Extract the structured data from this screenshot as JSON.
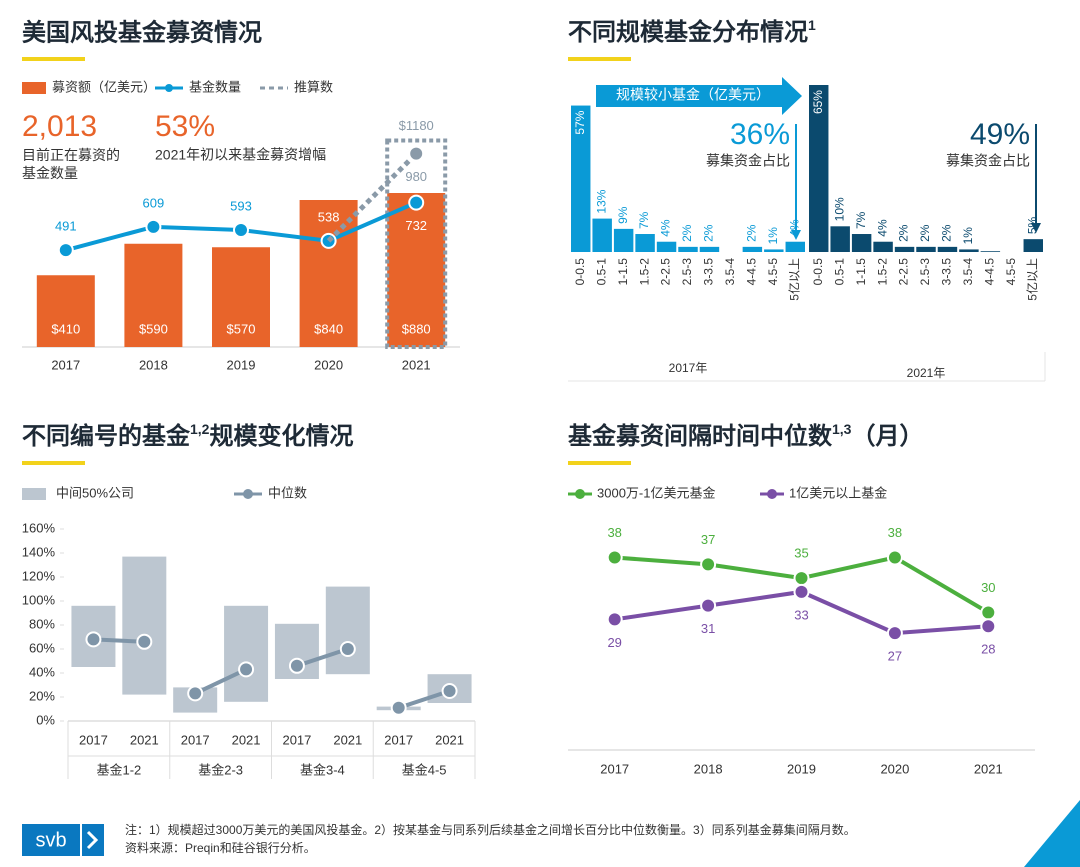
{
  "chart_data": [
    {
      "type": "combo",
      "title": "美国风投基金募资情况",
      "stats": [
        {
          "value": "2,013",
          "label": "目前正在募资的基金数量"
        },
        {
          "value": "53%",
          "label": "2021年初以来基金募资增幅"
        }
      ],
      "categories": [
        "2017",
        "2018",
        "2019",
        "2020",
        "2021"
      ],
      "series": [
        {
          "name": "募资额（亿美元）",
          "type": "bar",
          "color": "#e8642a",
          "values": [
            410,
            590,
            570,
            840,
            880
          ],
          "value_labels": [
            "$410",
            "$590",
            "$570",
            "$840",
            "$880"
          ]
        },
        {
          "name": "基金数量",
          "type": "line",
          "axis": "y2",
          "color": "#0a9ad6",
          "values": [
            491,
            609,
            593,
            538,
            732
          ]
        },
        {
          "name": "推算数",
          "type": "line",
          "axis": "y2",
          "style": "dashed",
          "color": "#8a9aa8",
          "values": [
            null,
            null,
            null,
            538,
            980
          ]
        }
      ],
      "projection_bar": {
        "color": "#8a9aa8",
        "values": [
          null,
          null,
          null,
          null,
          1180
        ],
        "value_labels": [
          null,
          null,
          null,
          null,
          "$1180"
        ]
      },
      "ylim": [
        0,
        1240
      ],
      "y2lim": [
        0,
        1100
      ]
    },
    {
      "type": "bar",
      "title": "不同规模基金分布情况",
      "title_superscript": "1",
      "categories": [
        "0-0.5",
        "0.5-1",
        "1-1.5",
        "1.5-2",
        "2-2.5",
        "2.5-3",
        "3-3.5",
        "3.5-4",
        "4-4.5",
        "4.5-5",
        "5亿以上"
      ],
      "series": [
        {
          "name": "2017年",
          "color": "#0a9ad6",
          "values": [
            57,
            13,
            9,
            7,
            4,
            2,
            2,
            0,
            2,
            1,
            4
          ],
          "value_labels": [
            "57%",
            "13%",
            "9%",
            "7%",
            "4%",
            "2%",
            "2%",
            null,
            "2%",
            "1%",
            "4%"
          ]
        },
        {
          "name": "2021年",
          "color": "#0b4a6e",
          "values": [
            65,
            10,
            7,
            4,
            2,
            2,
            2,
            1,
            0.3,
            0,
            5
          ],
          "value_labels": [
            "65%",
            "10%",
            "7%",
            "4%",
            "2%",
            "2%",
            "2%",
            "1%",
            null,
            null,
            "5%"
          ]
        }
      ],
      "annotations": {
        "arrow_text": "规模较小基金（亿美元）",
        "share_2017": "36%",
        "share_2017_text": "募集资金占比",
        "share_2021": "49%",
        "share_2021_text": "募集资金占比"
      },
      "ylim": [
        0,
        65
      ]
    },
    {
      "type": "range",
      "title": "不同编号的基金",
      "title_superscript": "1,2",
      "title_suffix": "规模变化情况",
      "groups": [
        "基金1-2",
        "基金2-3",
        "基金3-4",
        "基金4-5"
      ],
      "categories": [
        "2017",
        "2021",
        "2017",
        "2021",
        "2017",
        "2021",
        "2017",
        "2021"
      ],
      "series": [
        {
          "name": "中间50%公司",
          "type": "box",
          "color": "#bcc6d0",
          "low": [
            45,
            22,
            7,
            16,
            35,
            39,
            9,
            15
          ],
          "high": [
            96,
            137,
            28,
            96,
            81,
            112,
            12,
            39
          ]
        },
        {
          "name": "中位数",
          "type": "line",
          "color": "#7f95a8",
          "values": [
            68,
            66,
            23,
            43,
            46,
            60,
            11,
            25
          ]
        }
      ],
      "ylim": [
        0,
        160
      ],
      "yticks": [
        {
          "value": 0,
          "label": "0%"
        },
        {
          "value": 20,
          "label": "20%"
        },
        {
          "value": 40,
          "label": "40%"
        },
        {
          "value": 60,
          "label": "60%"
        },
        {
          "value": 80,
          "label": "80%"
        },
        {
          "value": 100,
          "label": "100%"
        },
        {
          "value": 120,
          "label": "120%"
        },
        {
          "value": 140,
          "label": "140%"
        },
        {
          "value": 160,
          "label": "160%"
        }
      ]
    },
    {
      "type": "line",
      "title": "基金募资间隔时间中位数",
      "title_superscript": "1,3",
      "title_suffix": "（月）",
      "categories": [
        "2017",
        "2018",
        "2019",
        "2020",
        "2021"
      ],
      "series": [
        {
          "name": "3000万-1亿美元基金",
          "color": "#4caf3e",
          "values": [
            38,
            37,
            35,
            38,
            30
          ]
        },
        {
          "name": "1亿美元以上基金",
          "color": "#7a4fa6",
          "values": [
            29,
            31,
            33,
            27,
            28
          ]
        }
      ],
      "ylim": [
        10,
        42
      ]
    }
  ],
  "footer": {
    "logo": "svb",
    "note": "注：1）规模超过3000万美元的美国风投基金。2）按某基金与同系列后续基金之间增长百分比中位数衡量。3）同系列基金募集间隔月数。",
    "source": "资料来源：Preqin和硅谷银行分析。"
  }
}
